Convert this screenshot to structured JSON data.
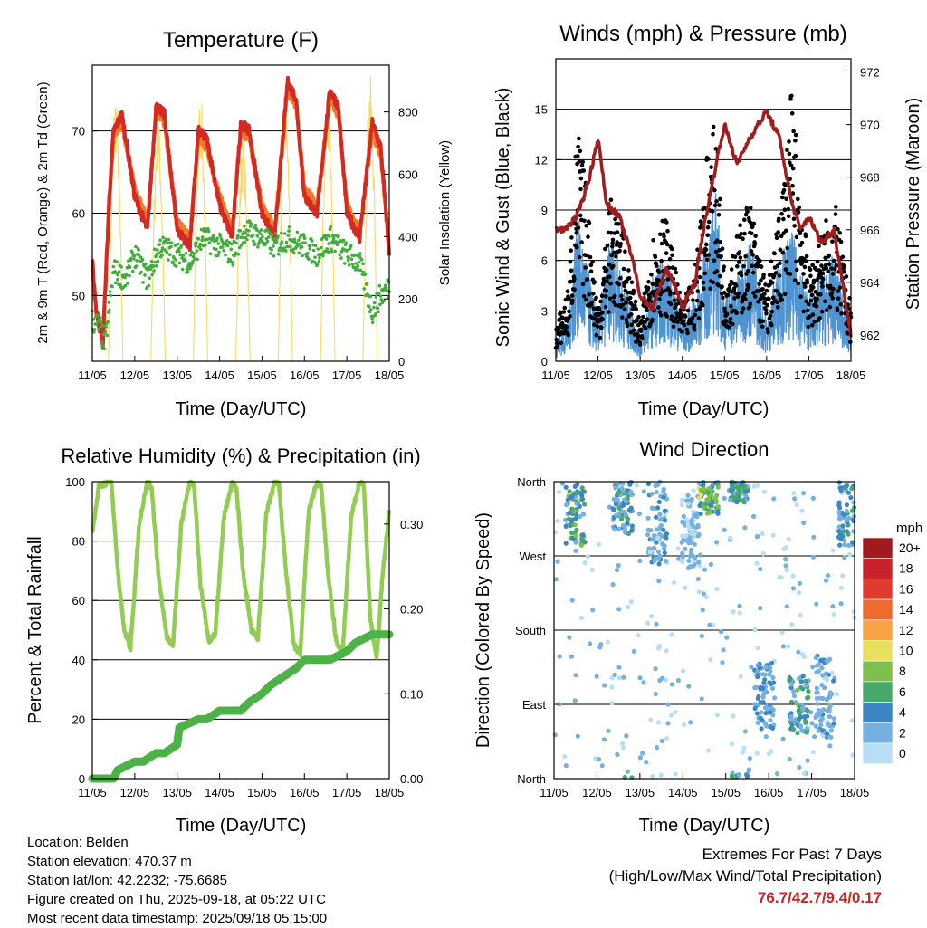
{
  "x_ticks": [
    "11/05",
    "12/05",
    "13/05",
    "14/05",
    "15/05",
    "16/05",
    "17/05",
    "18/05"
  ],
  "xlabel": "Time (Day/UTC)",
  "panels": {
    "temperature": {
      "title": "Temperature (F)",
      "ylabel": "2m & 9m T (Red, Orange) & 2m Td (Green)",
      "ylabel_right": "Solar Insolation (Yellow)",
      "y_ticks": [
        "50",
        "60",
        "70"
      ],
      "y_ticks_right": [
        "0",
        "200",
        "400",
        "600",
        "800"
      ]
    },
    "winds": {
      "title": "Winds (mph) & Pressure (mb)",
      "ylabel": "Sonic Wind & Gust (Blue, Black)",
      "ylabel_right": "Station Pressure (Maroon)",
      "y_ticks": [
        "0",
        "3",
        "6",
        "9",
        "12",
        "15"
      ],
      "y_ticks_right": [
        "962",
        "964",
        "966",
        "968",
        "970",
        "972"
      ]
    },
    "humidity": {
      "title": "Relative Humidity (%) & Precipitation (in)",
      "ylabel": "Percent & Total Rainfall",
      "y_ticks": [
        "0",
        "20",
        "40",
        "60",
        "80",
        "100"
      ],
      "y_ticks_right": [
        "0.00",
        "0.10",
        "0.20",
        "0.30"
      ]
    },
    "direction": {
      "title": "Wind Direction",
      "ylabel": "Direction (Colored By Speed)",
      "y_ticks": [
        "North",
        "East",
        "South",
        "West",
        "North"
      ],
      "legend_title": "mph",
      "legend_labels": [
        "20+",
        "18",
        "16",
        "14",
        "12",
        "10",
        "8",
        "6",
        "4",
        "2",
        "0"
      ],
      "legend_colors": [
        "#a11a1e",
        "#c8232a",
        "#e03b2e",
        "#f06a2e",
        "#f9a444",
        "#e8e05c",
        "#7cbf4a",
        "#46a86a",
        "#3d86c4",
        "#74b0e0",
        "#b8def5"
      ]
    }
  },
  "info": {
    "location": "Location: Belden",
    "elevation": "Station elevation: 470.37 m",
    "latlon": "Station lat/lon: 42.2232; -75.6685",
    "created": "Figure created on Thu, 2025-09-18, at 05:22 UTC",
    "recent": "Most recent data timestamp: 2025/09/18 05:15:00"
  },
  "extremes": {
    "title": "Extremes For Past 7 Days",
    "subtitle": "(High/Low/Max Wind/Total Precipitation)",
    "values": "76.7/42.7/9.4/0.17"
  },
  "colors": {
    "temp_2m": "#d42a22",
    "temp_9m": "#f07a2a",
    "dewpoint": "#3fae3a",
    "solar": "#f6dc60",
    "wind": "#4f93d0",
    "gust": "#000000",
    "pressure": "#a11d1d",
    "rh": "#92cc52",
    "precip": "#4cb248"
  },
  "chart_data": [
    {
      "type": "line",
      "name": "temperature",
      "x_range": [
        "11/05",
        "18/05"
      ],
      "ylim": [
        42,
        78
      ],
      "ylim_right": [
        0,
        950
      ],
      "series": [
        {
          "name": "2m T",
          "axis": "left",
          "x_days": [
            0,
            0.1,
            0.25,
            0.4,
            0.5,
            0.7,
            1,
            1.3,
            1.5,
            1.7,
            2,
            2.3,
            2.5,
            2.7,
            3,
            3.3,
            3.5,
            3.7,
            4,
            4.3,
            4.6,
            4.8,
            5,
            5.3,
            5.6,
            5.8,
            6,
            6.3,
            6.6,
            6.8,
            7
          ],
          "y": [
            54,
            48,
            44,
            62,
            70,
            72,
            62,
            58,
            73,
            72,
            58,
            56,
            70,
            69,
            61,
            57,
            71,
            70,
            60,
            57,
            76,
            74,
            62,
            60,
            75,
            73,
            60,
            57,
            71,
            68,
            55
          ]
        },
        {
          "name": "9m T",
          "axis": "left",
          "x_days": [
            0,
            0.1,
            0.25,
            0.4,
            0.5,
            0.7,
            1,
            1.3,
            1.5,
            1.7,
            2,
            2.3,
            2.5,
            2.7,
            3,
            3.3,
            3.5,
            3.7,
            4,
            4.3,
            4.6,
            4.8,
            5,
            5.3,
            5.6,
            5.8,
            6,
            6.3,
            6.6,
            6.8,
            7
          ],
          "y": [
            53,
            48,
            45,
            61,
            69,
            71,
            63,
            59,
            72,
            71,
            59,
            57,
            69,
            68,
            62,
            58,
            70,
            69,
            61,
            58,
            75,
            73,
            63,
            61,
            74,
            72,
            61,
            58,
            70,
            67,
            56
          ]
        },
        {
          "name": "2m Td",
          "axis": "left",
          "x_days": [
            0,
            0.2,
            0.3,
            0.5,
            0.8,
            1,
            1.3,
            1.6,
            2,
            2.3,
            2.6,
            3,
            3.3,
            3.6,
            4,
            4.3,
            4.6,
            5,
            5.3,
            5.6,
            6,
            6.3,
            6.6,
            6.8,
            7
          ],
          "y": [
            47,
            46,
            44,
            53,
            52,
            55,
            52,
            56,
            55,
            54,
            57,
            56,
            55,
            58,
            57,
            56,
            57,
            56,
            55,
            57,
            55,
            54,
            48,
            50,
            51
          ]
        },
        {
          "name": "Solar Insolation",
          "axis": "right",
          "peaks_days": [
            0.55,
            1.55,
            2.55,
            3.55,
            4.55,
            5.55,
            6.55
          ],
          "peak_values": [
            880,
            800,
            860,
            720,
            850,
            900,
            920
          ]
        }
      ]
    },
    {
      "type": "line",
      "name": "winds",
      "x_range": [
        "11/05",
        "18/05"
      ],
      "ylim": [
        0,
        18
      ],
      "ylim_right": [
        961,
        972.5
      ],
      "series": [
        {
          "name": "Sonic Wind",
          "axis": "left",
          "x_days": [
            0,
            0.3,
            0.5,
            0.7,
            1,
            1.3,
            1.6,
            2,
            2.3,
            2.6,
            3,
            3.3,
            3.6,
            3.8,
            4,
            4.3,
            4.6,
            5,
            5.3,
            5.6,
            6,
            6.3,
            6.6,
            7
          ],
          "y": [
            1,
            2,
            7,
            5,
            2,
            6,
            4,
            1,
            4,
            5,
            2,
            3,
            6,
            8,
            3,
            4,
            6,
            2,
            5,
            6,
            3,
            4,
            5,
            2
          ]
        },
        {
          "name": "Gust",
          "axis": "left",
          "x_days": [
            0,
            0.3,
            0.5,
            0.7,
            1,
            1.3,
            1.6,
            2,
            2.3,
            2.6,
            3,
            3.3,
            3.6,
            3.8,
            4,
            4.3,
            4.6,
            5,
            5.3,
            5.6,
            6,
            6.3,
            6.6,
            7
          ],
          "y": [
            2,
            4,
            13,
            10,
            3,
            9,
            7,
            2,
            7,
            8,
            3,
            5,
            12,
            13,
            5,
            7,
            9,
            4,
            8,
            15,
            5,
            7,
            9,
            3
          ]
        },
        {
          "name": "Station Pressure",
          "axis": "right",
          "x_days": [
            0,
            0.2,
            0.5,
            0.8,
            1,
            1.2,
            1.5,
            1.8,
            2,
            2.3,
            2.6,
            2.8,
            3,
            3.3,
            3.5,
            3.8,
            4,
            4.3,
            4.6,
            5,
            5.3,
            5.6,
            5.8,
            6,
            6.3,
            6.6,
            6.8,
            7
          ],
          "y": [
            966,
            966,
            966.5,
            968,
            969.5,
            967,
            966.5,
            965,
            963.5,
            963,
            964.5,
            964,
            963,
            964,
            966,
            968.5,
            970,
            968.5,
            969.5,
            970.5,
            969.5,
            967,
            966,
            966.5,
            965.5,
            966,
            964,
            962
          ]
        }
      ]
    },
    {
      "type": "line",
      "name": "humidity",
      "x_range": [
        "11/05",
        "18/05"
      ],
      "ylim": [
        0,
        100
      ],
      "ylim_right": [
        0,
        0.35
      ],
      "series": [
        {
          "name": "Relative Humidity",
          "axis": "left",
          "x_days": [
            0,
            0.15,
            0.35,
            0.45,
            0.6,
            0.75,
            0.9,
            1.1,
            1.3,
            1.4,
            1.55,
            1.75,
            1.9,
            2.1,
            2.3,
            2.4,
            2.55,
            2.75,
            2.9,
            3.1,
            3.3,
            3.4,
            3.55,
            3.75,
            3.9,
            4.1,
            4.3,
            4.4,
            4.55,
            4.75,
            4.9,
            5.1,
            5.3,
            5.4,
            5.55,
            5.75,
            5.9,
            6.1,
            6.3,
            6.4,
            6.55,
            6.7,
            6.85,
            7
          ],
          "y": [
            83,
            98,
            100,
            100,
            70,
            50,
            44,
            85,
            100,
            98,
            70,
            48,
            45,
            86,
            100,
            99,
            65,
            46,
            49,
            88,
            100,
            97,
            70,
            50,
            47,
            89,
            100,
            99,
            72,
            45,
            42,
            90,
            100,
            98,
            70,
            46,
            42,
            88,
            100,
            99,
            55,
            40,
            70,
            90
          ]
        },
        {
          "name": "Total Precipitation",
          "axis": "right",
          "x_days": [
            0,
            0.5,
            0.6,
            1,
            1.2,
            1.5,
            1.7,
            2,
            2.05,
            2.5,
            2.7,
            3,
            3.5,
            3.7,
            4,
            4.2,
            4.5,
            4.8,
            5,
            5.3,
            5.6,
            6,
            6.2,
            6.6,
            7
          ],
          "y": [
            0,
            0,
            0.01,
            0.02,
            0.02,
            0.03,
            0.03,
            0.04,
            0.06,
            0.07,
            0.07,
            0.08,
            0.08,
            0.09,
            0.1,
            0.11,
            0.12,
            0.13,
            0.14,
            0.14,
            0.14,
            0.15,
            0.16,
            0.17,
            0.17
          ]
        }
      ]
    },
    {
      "type": "scatter",
      "name": "direction",
      "x_range": [
        "11/05",
        "18/05"
      ],
      "y_categories": [
        "North",
        "East",
        "South",
        "West",
        "North"
      ],
      "ylim": [
        0,
        360
      ],
      "clusters": [
        {
          "day": 0.5,
          "dir_center": 320,
          "spread": 40,
          "speed": 7
        },
        {
          "day": 1.6,
          "dir_center": 330,
          "spread": 35,
          "speed": 5
        },
        {
          "day": 2.4,
          "dir_center": 310,
          "spread": 50,
          "speed": 3
        },
        {
          "day": 3.2,
          "dir_center": 300,
          "spread": 45,
          "speed": 2
        },
        {
          "day": 3.6,
          "dir_center": 340,
          "spread": 20,
          "speed": 8
        },
        {
          "day": 4.3,
          "dir_center": 350,
          "spread": 15,
          "speed": 6
        },
        {
          "day": 4.9,
          "dir_center": 100,
          "spread": 40,
          "speed": 4
        },
        {
          "day": 5.7,
          "dir_center": 90,
          "spread": 35,
          "speed": 6
        },
        {
          "day": 6.3,
          "dir_center": 100,
          "spread": 50,
          "speed": 3
        },
        {
          "day": 6.85,
          "dir_center": 320,
          "spread": 40,
          "speed": 5
        }
      ]
    }
  ]
}
